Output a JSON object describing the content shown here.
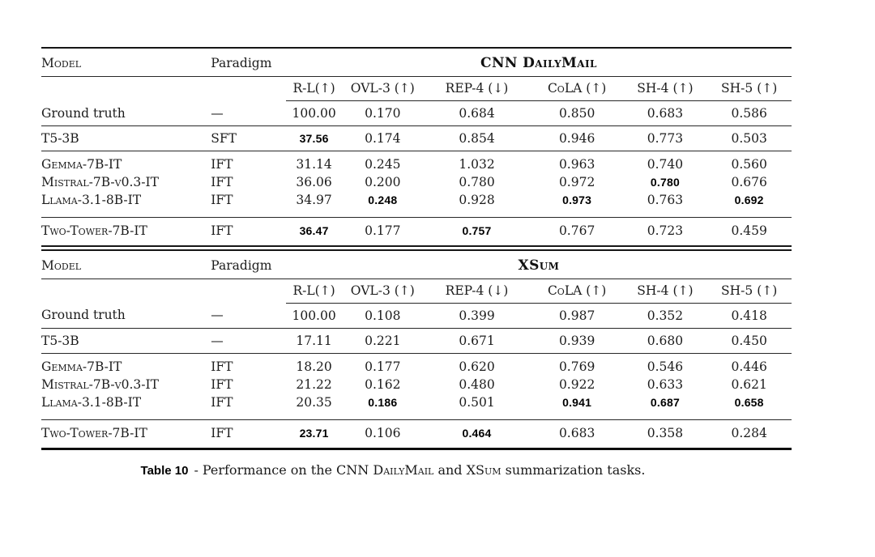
{
  "caption": {
    "label": "Table 10",
    "separator": "-",
    "parts": [
      {
        "text": "Performance on the CNN "
      },
      {
        "text": "DailyMail",
        "smallcaps": true
      },
      {
        "text": " and "
      },
      {
        "text": "XSum",
        "smallcaps": true
      },
      {
        "text": " summarization tasks."
      }
    ]
  },
  "columns": {
    "model": "Model",
    "paradigm": "Paradigm",
    "metrics": [
      "R-L(↑)",
      "OVL-3 (↑)",
      "REP-4 (↓)",
      "CoLA (↑)",
      "SH-4 (↑)",
      "SH-5 (↑)"
    ]
  },
  "tables": [
    {
      "title": "CNN DailyMail",
      "groups": [
        {
          "rows": [
            {
              "model": "Ground truth",
              "smallcaps": false,
              "paradigm": "—",
              "values": [
                {
                  "t": "100.00"
                },
                {
                  "t": "0.170"
                },
                {
                  "t": "0.684"
                },
                {
                  "t": "0.850"
                },
                {
                  "t": "0.683"
                },
                {
                  "t": "0.586"
                }
              ]
            }
          ]
        },
        {
          "rows": [
            {
              "model": "T5-3B",
              "smallcaps": false,
              "paradigm": "SFT",
              "values": [
                {
                  "t": "37.56",
                  "b": true
                },
                {
                  "t": "0.174"
                },
                {
                  "t": "0.854"
                },
                {
                  "t": "0.946"
                },
                {
                  "t": "0.773"
                },
                {
                  "t": "0.503"
                }
              ]
            }
          ]
        },
        {
          "rows": [
            {
              "model": "Gemma-7B-IT",
              "smallcaps": true,
              "paradigm": "IFT",
              "values": [
                {
                  "t": "31.14"
                },
                {
                  "t": "0.245"
                },
                {
                  "t": "1.032"
                },
                {
                  "t": "0.963"
                },
                {
                  "t": "0.740"
                },
                {
                  "t": "0.560"
                }
              ]
            },
            {
              "model": "Mistral-7B-v0.3-IT",
              "smallcaps": true,
              "paradigm": "IFT",
              "values": [
                {
                  "t": "36.06"
                },
                {
                  "t": "0.200"
                },
                {
                  "t": "0.780"
                },
                {
                  "t": "0.972"
                },
                {
                  "t": "0.780",
                  "b": true
                },
                {
                  "t": "0.676"
                }
              ]
            },
            {
              "model": "Llama-3.1-8B-IT",
              "smallcaps": true,
              "paradigm": "IFT",
              "values": [
                {
                  "t": "34.97"
                },
                {
                  "t": "0.248",
                  "b": true
                },
                {
                  "t": "0.928"
                },
                {
                  "t": "0.973",
                  "b": true
                },
                {
                  "t": "0.763"
                },
                {
                  "t": "0.692",
                  "b": true
                }
              ]
            }
          ]
        },
        {
          "rows": [
            {
              "model": "Two-Tower-7B-IT",
              "smallcaps": true,
              "paradigm": "IFT",
              "values": [
                {
                  "t": "36.47",
                  "b": true
                },
                {
                  "t": "0.177"
                },
                {
                  "t": "0.757",
                  "b": true
                },
                {
                  "t": "0.767"
                },
                {
                  "t": "0.723"
                },
                {
                  "t": "0.459"
                }
              ]
            }
          ]
        }
      ]
    },
    {
      "title": "XSum",
      "groups": [
        {
          "rows": [
            {
              "model": "Ground truth",
              "smallcaps": false,
              "paradigm": "—",
              "values": [
                {
                  "t": "100.00"
                },
                {
                  "t": "0.108"
                },
                {
                  "t": "0.399"
                },
                {
                  "t": "0.987"
                },
                {
                  "t": "0.352"
                },
                {
                  "t": "0.418"
                }
              ]
            }
          ]
        },
        {
          "rows": [
            {
              "model": "T5-3B",
              "smallcaps": false,
              "paradigm": "—",
              "values": [
                {
                  "t": "17.11"
                },
                {
                  "t": "0.221"
                },
                {
                  "t": "0.671"
                },
                {
                  "t": "0.939"
                },
                {
                  "t": "0.680"
                },
                {
                  "t": "0.450"
                }
              ]
            }
          ]
        },
        {
          "rows": [
            {
              "model": "Gemma-7B-IT",
              "smallcaps": true,
              "paradigm": "IFT",
              "values": [
                {
                  "t": "18.20"
                },
                {
                  "t": "0.177"
                },
                {
                  "t": "0.620"
                },
                {
                  "t": "0.769"
                },
                {
                  "t": "0.546"
                },
                {
                  "t": "0.446"
                }
              ]
            },
            {
              "model": "Mistral-7B-v0.3-IT",
              "smallcaps": true,
              "paradigm": "IFT",
              "values": [
                {
                  "t": "21.22"
                },
                {
                  "t": "0.162"
                },
                {
                  "t": "0.480"
                },
                {
                  "t": "0.922"
                },
                {
                  "t": "0.633"
                },
                {
                  "t": "0.621"
                }
              ]
            },
            {
              "model": "Llama-3.1-8B-IT",
              "smallcaps": true,
              "paradigm": "IFT",
              "values": [
                {
                  "t": "20.35"
                },
                {
                  "t": "0.186",
                  "b": true
                },
                {
                  "t": "0.501"
                },
                {
                  "t": "0.941",
                  "b": true
                },
                {
                  "t": "0.687",
                  "b": true
                },
                {
                  "t": "0.658",
                  "b": true
                }
              ]
            }
          ]
        },
        {
          "rows": [
            {
              "model": "Two-Tower-7B-IT",
              "smallcaps": true,
              "paradigm": "IFT",
              "values": [
                {
                  "t": "23.71",
                  "b": true
                },
                {
                  "t": "0.106"
                },
                {
                  "t": "0.464",
                  "b": true
                },
                {
                  "t": "0.683"
                },
                {
                  "t": "0.358"
                },
                {
                  "t": "0.284"
                }
              ]
            }
          ]
        }
      ]
    }
  ]
}
